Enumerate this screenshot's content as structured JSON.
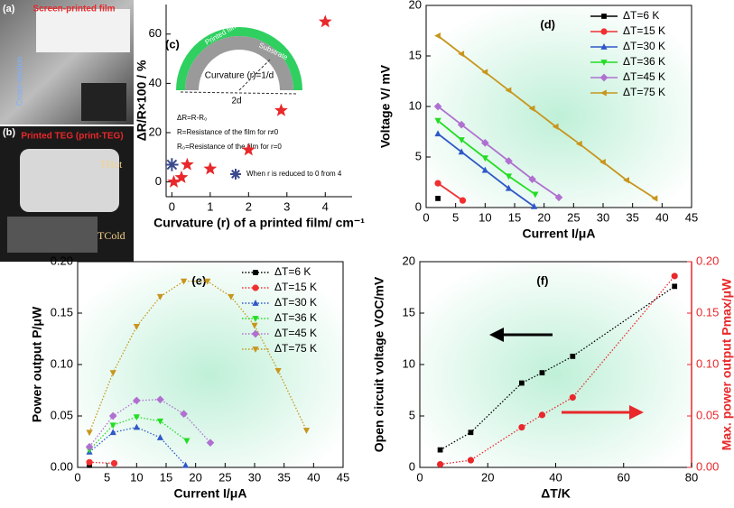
{
  "photos": {
    "label_a": "(a)",
    "title_a": "Screen-printed film",
    "section_a": "Cross-section",
    "label_b": "(b)",
    "title_b": "Printed TEG (print-TEG)",
    "hot": "THot",
    "cold": "TCold"
  },
  "chart_data": [
    {
      "type": "scatter",
      "label": "(c)",
      "xlabel": "Curvature (r) of a printed film/ cm⁻¹",
      "ylabel": "ΔR/R×100 / %",
      "xlim": [
        -0.15,
        4.7
      ],
      "xticks": [
        0,
        1,
        2,
        3,
        4
      ],
      "ylim": [
        -6,
        72
      ],
      "yticks": [
        0,
        20,
        40,
        60
      ],
      "legend": "lower right",
      "annotations": [
        "Printed film",
        "Substrate",
        "Curvature (r)=1/d",
        "2d",
        "ΔR=R-R₀",
        "R=Resistance of the film for r≠0",
        "R₀=Resistance of the film for r=0"
      ],
      "series": [
        {
          "color": "#e8282b",
          "marker": "star",
          "x": [
            0.05,
            0.25,
            0.4,
            1,
            2,
            2.85,
            4
          ],
          "values": [
            0,
            1.8,
            7,
            5.3,
            13,
            29,
            65
          ]
        },
        {
          "name": "When r is reduced to 0 from 4",
          "color": "#3a4a8c",
          "marker": "asterisk",
          "x": [
            0
          ],
          "values": [
            7
          ]
        }
      ]
    },
    {
      "type": "line",
      "label": "(d)",
      "xlabel": "Current I/μA",
      "ylabel": "Voltage V/ mV",
      "xlim": [
        0,
        45
      ],
      "xticks": [
        0,
        5,
        10,
        15,
        20,
        25,
        30,
        35,
        40,
        45
      ],
      "ylim": [
        0,
        20
      ],
      "yticks": [
        0,
        5,
        10,
        15,
        20
      ],
      "legend": "upper right",
      "line_style": "solid",
      "series": [
        {
          "name": "ΔT=6 K",
          "color": "#000000",
          "marker": "square",
          "x": [
            2
          ],
          "values": [
            0.9
          ]
        },
        {
          "name": "ΔT=15 K",
          "color": "#f03030",
          "marker": "circle",
          "x": [
            2,
            6.2
          ],
          "values": [
            2.4,
            0.7
          ]
        },
        {
          "name": "ΔT=30 K",
          "color": "#2f58c8",
          "marker": "triangle-up",
          "x": [
            2,
            6,
            10,
            14,
            18.3
          ],
          "values": [
            7.3,
            5.5,
            3.7,
            1.9,
            0.1
          ]
        },
        {
          "name": "ΔT=36 K",
          "color": "#22dd22",
          "marker": "triangle-down",
          "x": [
            2,
            6,
            10,
            14,
            18.5
          ],
          "values": [
            8.6,
            6.7,
            4.9,
            3.1,
            1.3
          ]
        },
        {
          "name": "ΔT=45 K",
          "color": "#b070d0",
          "marker": "diamond",
          "x": [
            2,
            6,
            10,
            14,
            18,
            22.5
          ],
          "values": [
            10,
            8.2,
            6.4,
            4.6,
            2.8,
            1
          ]
        },
        {
          "name": "ΔT=75 K",
          "color": "#c8961e",
          "marker": "triangle-left",
          "x": [
            2,
            6,
            10,
            14,
            18,
            22,
            26,
            30,
            34,
            38.8
          ],
          "values": [
            17,
            15.2,
            13.4,
            11.6,
            9.8,
            8,
            6.3,
            4.5,
            2.7,
            0.9
          ]
        }
      ]
    },
    {
      "type": "line",
      "label": "(e)",
      "xlabel": "Current I/μA",
      "ylabel": "Power output P/μW",
      "xlim": [
        0,
        45
      ],
      "xticks": [
        0,
        5,
        10,
        15,
        20,
        25,
        30,
        35,
        40,
        45
      ],
      "ylim": [
        0,
        0.2
      ],
      "yticks": [
        {
          "value": 0,
          "label": "0.00"
        },
        {
          "value": 0.05,
          "label": "0.05"
        },
        {
          "value": 0.1,
          "label": "0.10"
        },
        {
          "value": 0.15,
          "label": "0.15"
        },
        {
          "value": 0.2,
          "label": "0.20"
        }
      ],
      "legend": "upper right",
      "line_style": "dotted",
      "series": [
        {
          "name": "ΔT=6 K",
          "color": "#000000",
          "marker": "square",
          "x": [
            2
          ],
          "values": [
            0.002
          ]
        },
        {
          "name": "ΔT=15 K",
          "color": "#f03030",
          "marker": "circle",
          "x": [
            2,
            6.2
          ],
          "values": [
            0.005,
            0.004
          ]
        },
        {
          "name": "ΔT=30 K",
          "color": "#2f58c8",
          "marker": "triangle-up",
          "x": [
            2,
            6,
            10,
            14,
            18.3
          ],
          "values": [
            0.015,
            0.034,
            0.039,
            0.029,
            0.002
          ]
        },
        {
          "name": "ΔT=36 K",
          "color": "#22dd22",
          "marker": "triangle-down",
          "x": [
            2,
            6,
            10,
            14,
            18.5
          ],
          "values": [
            0.017,
            0.041,
            0.049,
            0.045,
            0.026
          ]
        },
        {
          "name": "ΔT=45 K",
          "color": "#b070d0",
          "marker": "diamond",
          "x": [
            2,
            6,
            10,
            14,
            18,
            22.5
          ],
          "values": [
            0.02,
            0.05,
            0.065,
            0.066,
            0.052,
            0.024
          ]
        },
        {
          "name": "ΔT=75 K",
          "color": "#c8961e",
          "marker": "triangle-down",
          "x": [
            2,
            6,
            10,
            14,
            18,
            22,
            26,
            30,
            34,
            38.8
          ],
          "values": [
            0.034,
            0.092,
            0.137,
            0.166,
            0.181,
            0.181,
            0.166,
            0.138,
            0.094,
            0.036
          ]
        }
      ]
    },
    {
      "type": "line",
      "label": "(f)",
      "xlabel": "ΔT/K",
      "ylabel": "Open circuit voltage VOC/mV",
      "y2label": "Max. power output Pmax/μW",
      "xlim": [
        0,
        80
      ],
      "xticks": [
        0,
        20,
        40,
        60,
        80
      ],
      "ylim": [
        0,
        20
      ],
      "yticks": [
        0,
        5,
        10,
        15,
        20
      ],
      "y2lim": [
        0,
        0.2
      ],
      "y2ticks": [
        {
          "value": 0,
          "label": "0.00"
        },
        {
          "value": 0.05,
          "label": "0.05"
        },
        {
          "value": 0.1,
          "label": "0.10"
        },
        {
          "value": 0.15,
          "label": "0.15"
        },
        {
          "value": 0.2,
          "label": "0.20"
        }
      ],
      "y2color": "#e8282b",
      "line_style": "dotted",
      "series": [
        {
          "color": "#000000",
          "marker": "square",
          "x": [
            6,
            15,
            30,
            36,
            45,
            75
          ],
          "values": [
            1.7,
            3.4,
            8.2,
            9.2,
            10.8,
            17.6
          ]
        },
        {
          "color": "#e8282b",
          "marker": "circle",
          "axis": "y2",
          "x": [
            6,
            15,
            30,
            36,
            45,
            75
          ],
          "values": [
            0.003,
            0.007,
            0.039,
            0.051,
            0.068,
            0.186
          ]
        }
      ]
    }
  ]
}
